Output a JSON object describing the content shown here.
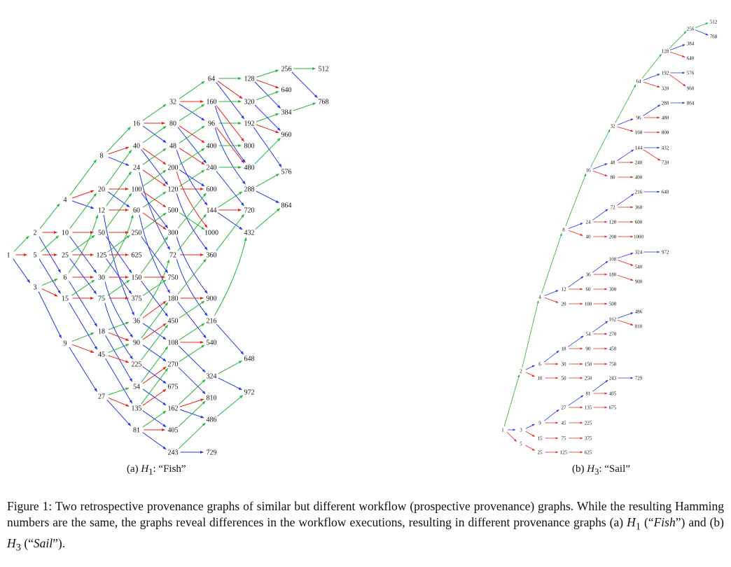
{
  "colors": {
    "red": "#e8231a",
    "blue": "#2438e6",
    "green": "#27b53a",
    "text": "#111111"
  },
  "subfigure_a": {
    "label": "(a)",
    "symbol": "H",
    "subscript": "1",
    "name": "“Fish”",
    "nodes": [
      "1",
      "2",
      "3",
      "4",
      "5",
      "6",
      "8",
      "9",
      "10",
      "12",
      "15",
      "16",
      "18",
      "20",
      "24",
      "25",
      "27",
      "30",
      "32",
      "36",
      "40",
      "45",
      "48",
      "50",
      "54",
      "60",
      "64",
      "72",
      "75",
      "80",
      "81",
      "90",
      "96",
      "100",
      "108",
      "120",
      "125",
      "128",
      "135",
      "144",
      "150",
      "160",
      "162",
      "180",
      "192",
      "200",
      "216",
      "225",
      "240",
      "243",
      "250",
      "256",
      "270",
      "288",
      "300",
      "320",
      "324",
      "360",
      "375",
      "384",
      "400",
      "405",
      "432",
      "450",
      "480",
      "486",
      "500",
      "512",
      "540",
      "576",
      "600",
      "625",
      "640",
      "648",
      "675",
      "720",
      "729",
      "750",
      "768",
      "800",
      "810",
      "864",
      "900",
      "960",
      "972",
      "1000"
    ]
  },
  "subfigure_b": {
    "label": "(b)",
    "symbol": "H",
    "subscript": "3",
    "name": "“Sail”",
    "nodes": [
      "1",
      "2",
      "3",
      "4",
      "5",
      "6",
      "8",
      "9",
      "10",
      "12",
      "15",
      "16",
      "18",
      "20",
      "24",
      "25",
      "27",
      "30",
      "32",
      "36",
      "40",
      "45",
      "48",
      "50",
      "54",
      "60",
      "64",
      "72",
      "75",
      "80",
      "81",
      "90",
      "96",
      "100",
      "108",
      "120",
      "125",
      "128",
      "135",
      "144",
      "150",
      "160",
      "162",
      "180",
      "192",
      "200",
      "216",
      "225",
      "240",
      "243",
      "250",
      "256",
      "270",
      "288",
      "300",
      "320",
      "324",
      "360",
      "375",
      "384",
      "400",
      "405",
      "432",
      "450",
      "480",
      "486",
      "500",
      "512",
      "540",
      "576",
      "600",
      "625",
      "640",
      "648",
      "675",
      "720",
      "729",
      "750",
      "768",
      "800",
      "810",
      "864",
      "900",
      "960",
      "972",
      "1000"
    ]
  },
  "caption": {
    "prefix": "Figure 1:  Two retrospective provenance graphs of similar but different workflow (prospective provenance) graphs.  While the resulting Hamming numbers are the same, the graphs reveal differences in the workflow executions, resulting in different provenance graphs (a) ",
    "h1_symbol": "H",
    "h1_sub": "1",
    "h1_name_open": " (“",
    "h1_name": "Fish",
    "h1_name_close": "”) and (b) ",
    "h3_symbol": "H",
    "h3_sub": "3",
    "h3_name_open": " (“",
    "h3_name": "Sail",
    "h3_name_close": "”)."
  }
}
